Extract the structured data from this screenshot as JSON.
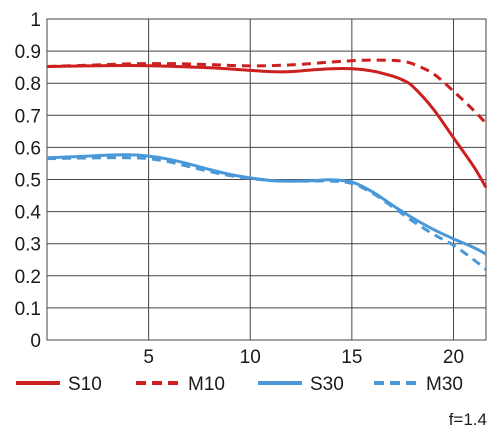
{
  "chart_data": {
    "type": "line",
    "xlim": [
      0,
      21.6
    ],
    "ylim": [
      0,
      1
    ],
    "x_ticks": [
      5,
      10,
      15,
      20
    ],
    "x_tick_labels": [
      "5",
      "10",
      "15",
      "20"
    ],
    "y_ticks": [
      0,
      0.1,
      0.2,
      0.3,
      0.4,
      0.5,
      0.6,
      0.7,
      0.8,
      0.9,
      1
    ],
    "y_tick_labels": [
      "0",
      "0.1",
      "0.2",
      "0.3",
      "0.4",
      "0.5",
      "0.6",
      "0.7",
      "0.8",
      "0.9",
      "1"
    ],
    "grid": true,
    "legend_position": "bottom",
    "annotation": "f=1.4",
    "series": [
      {
        "name": "S10",
        "color": "#cc1f1f",
        "dash": "solid",
        "x": [
          0,
          2,
          4,
          6,
          8,
          10,
          11,
          12,
          13,
          14,
          15,
          16,
          17,
          17.5,
          18,
          19,
          20,
          21,
          21.6
        ],
        "y": [
          0.852,
          0.854,
          0.855,
          0.853,
          0.848,
          0.84,
          0.836,
          0.836,
          0.841,
          0.845,
          0.845,
          0.838,
          0.822,
          0.81,
          0.79,
          0.72,
          0.63,
          0.54,
          0.475
        ]
      },
      {
        "name": "M10",
        "color": "#cc1f1f",
        "dash": "dashed",
        "x": [
          0,
          2,
          4,
          6,
          8,
          10,
          12,
          14,
          15,
          16,
          17,
          17.5,
          18,
          19,
          20,
          21,
          21.6
        ],
        "y": [
          0.852,
          0.856,
          0.86,
          0.861,
          0.858,
          0.854,
          0.857,
          0.866,
          0.87,
          0.872,
          0.871,
          0.868,
          0.86,
          0.83,
          0.775,
          0.715,
          0.675
        ]
      },
      {
        "name": "S30",
        "color": "#4a98d8",
        "dash": "solid",
        "x": [
          0,
          1,
          2,
          3,
          4,
          5,
          6,
          7,
          8,
          9,
          10,
          11,
          12,
          13,
          14,
          15,
          16,
          17,
          18,
          19,
          20,
          21,
          21.6
        ],
        "y": [
          0.568,
          0.57,
          0.573,
          0.576,
          0.577,
          0.573,
          0.563,
          0.548,
          0.531,
          0.516,
          0.505,
          0.497,
          0.495,
          0.496,
          0.499,
          0.492,
          0.462,
          0.42,
          0.38,
          0.345,
          0.315,
          0.288,
          0.268
        ]
      },
      {
        "name": "M30",
        "color": "#4a98d8",
        "dash": "dashed",
        "x": [
          0,
          1,
          2,
          3,
          4,
          5,
          6,
          7,
          8,
          9,
          10,
          11,
          12,
          13,
          14,
          15,
          16,
          17,
          18,
          19,
          20,
          21,
          21.6
        ],
        "y": [
          0.565,
          0.566,
          0.567,
          0.568,
          0.568,
          0.565,
          0.555,
          0.54,
          0.525,
          0.512,
          0.503,
          0.497,
          0.495,
          0.495,
          0.495,
          0.488,
          0.458,
          0.415,
          0.37,
          0.33,
          0.295,
          0.25,
          0.22
        ]
      }
    ]
  }
}
